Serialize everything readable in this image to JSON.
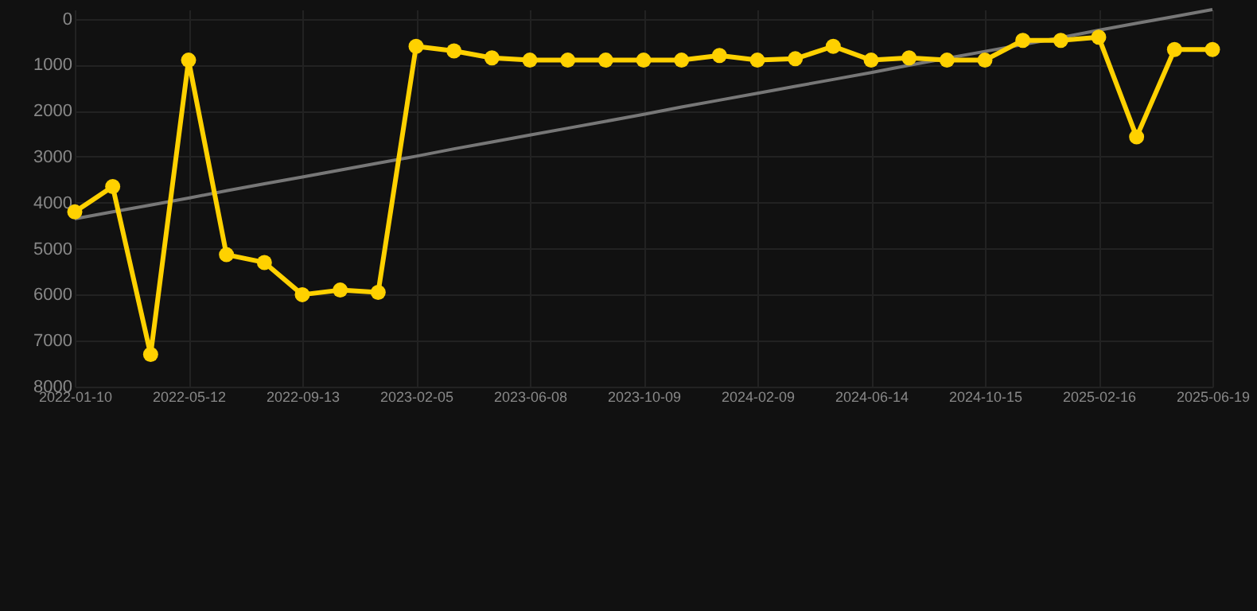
{
  "chart_data": {
    "type": "line",
    "categories": [
      "2022-01-10",
      null,
      null,
      "2022-05-12",
      null,
      null,
      "2022-09-13",
      null,
      null,
      "2023-02-05",
      null,
      null,
      "2023-06-08",
      null,
      null,
      "2023-10-09",
      null,
      null,
      "2024-02-09",
      null,
      null,
      "2024-06-14",
      null,
      null,
      "2024-10-15",
      null,
      null,
      "2025-02-16",
      null,
      null,
      "2025-06-19"
    ],
    "series": [
      {
        "color": "#777777",
        "marker": "none",
        "values": [
          4350,
          4200,
          4050,
          3900,
          3740,
          3590,
          3440,
          3290,
          3140,
          2990,
          2830,
          2680,
          2530,
          2380,
          2230,
          2080,
          1920,
          1770,
          1620,
          1470,
          1320,
          1170,
          1010,
          860,
          710,
          560,
          410,
          250,
          100,
          -50,
          -200
        ]
      },
      {
        "color": "#ffd100",
        "marker": "circle",
        "values": [
          4200,
          3650,
          7300,
          900,
          5130,
          5300,
          6000,
          5900,
          5950,
          600,
          700,
          850,
          900,
          900,
          900,
          900,
          900,
          800,
          900,
          870,
          600,
          900,
          850,
          900,
          900,
          470,
          470,
          400,
          2570,
          670,
          670
        ]
      }
    ],
    "ylim": [
      8000,
      -200
    ],
    "yticks": [
      0,
      1000,
      2000,
      3000,
      4000,
      5000,
      6000,
      7000,
      8000
    ],
    "grid": true
  }
}
